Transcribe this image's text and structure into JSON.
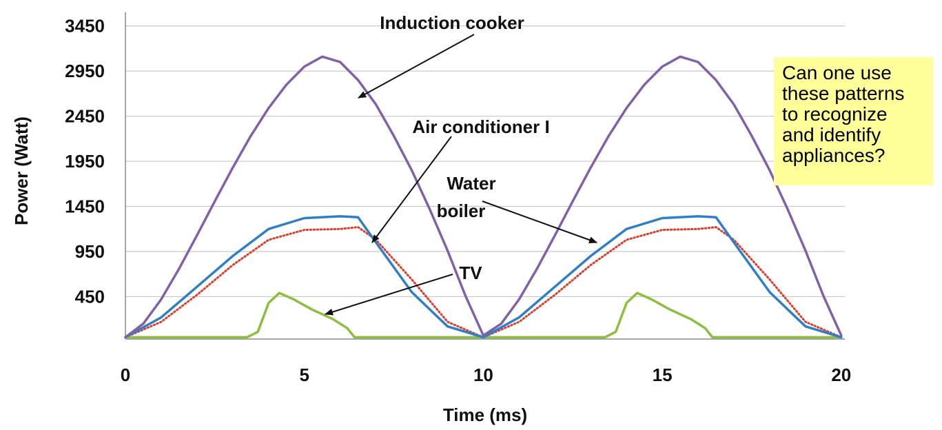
{
  "chart_data": {
    "type": "line",
    "title": "",
    "xlabel": "Time (ms)",
    "ylabel": "Power (Watt)",
    "xlim": [
      0,
      20.1
    ],
    "ylim": [
      -20,
      3600
    ],
    "xticks": [
      "0",
      "5",
      "10",
      "15",
      "20"
    ],
    "yticks": [
      "450",
      "950",
      "1450",
      "1950",
      "2450",
      "2950",
      "3450"
    ],
    "grid": "horizontal",
    "series": [
      {
        "name": "Induction cooker",
        "color": "#8060a8",
        "x": [
          0,
          0.5,
          1,
          1.5,
          2,
          2.5,
          3,
          3.5,
          4,
          4.5,
          5,
          5.5,
          6,
          6.5,
          7,
          7.5,
          8,
          8.5,
          9,
          9.5,
          10,
          10.5,
          11,
          11.5,
          12,
          12.5,
          13,
          13.5,
          14,
          14.5,
          15,
          15.5,
          16,
          16.5,
          17,
          17.5,
          18,
          18.5,
          19,
          19.5,
          20
        ],
        "y": [
          0,
          150,
          420,
          760,
          1130,
          1510,
          1880,
          2230,
          2540,
          2800,
          3000,
          3110,
          3050,
          2850,
          2580,
          2230,
          1850,
          1420,
          960,
          460,
          20,
          150,
          420,
          760,
          1130,
          1510,
          1880,
          2230,
          2540,
          2800,
          3000,
          3110,
          3050,
          2850,
          2580,
          2230,
          1850,
          1420,
          960,
          460,
          20
        ]
      },
      {
        "name": "Water boiler",
        "color": "#2e7fc8",
        "x": [
          0,
          1,
          2,
          3,
          4,
          5,
          6,
          6.5,
          7,
          8,
          9,
          10,
          11,
          12,
          13,
          14,
          15,
          16,
          16.5,
          17,
          18,
          19,
          20
        ],
        "y": [
          0,
          220,
          560,
          900,
          1200,
          1320,
          1340,
          1330,
          1050,
          500,
          120,
          0,
          220,
          560,
          900,
          1200,
          1320,
          1340,
          1330,
          1050,
          500,
          120,
          0
        ]
      },
      {
        "name": "Air conditioner I",
        "color": "#e03a2a",
        "x": [
          0,
          1,
          2,
          3,
          4,
          5,
          6,
          6.5,
          7,
          8,
          9,
          10,
          11,
          12,
          13,
          14,
          15,
          16,
          16.5,
          17,
          18,
          19,
          20
        ],
        "y": [
          0,
          170,
          470,
          800,
          1080,
          1190,
          1200,
          1220,
          1080,
          640,
          170,
          0,
          170,
          470,
          800,
          1080,
          1190,
          1200,
          1220,
          1080,
          640,
          170,
          0
        ]
      },
      {
        "name": "TV",
        "color": "#8cbf3f",
        "x": [
          0,
          3.4,
          3.7,
          4.0,
          4.3,
          4.7,
          5.2,
          5.8,
          6.2,
          6.4,
          7,
          10,
          13.4,
          13.7,
          14.0,
          14.3,
          14.7,
          15.2,
          15.8,
          16.2,
          16.4,
          17,
          20
        ],
        "y": [
          0,
          0,
          60,
          380,
          490,
          420,
          310,
          200,
          100,
          0,
          0,
          0,
          0,
          60,
          380,
          490,
          420,
          310,
          200,
          100,
          0,
          0,
          0
        ]
      }
    ],
    "annotations": [
      {
        "text": "Induction cooker",
        "target_x": 6.4,
        "target_y": 2700
      },
      {
        "text": "Air conditioner I",
        "target_x": 6.8,
        "target_y": 1100
      },
      {
        "text": "Water",
        "target_x": 13.3,
        "target_y": 1050
      },
      {
        "text": "boiler",
        "target_x": 13.3,
        "target_y": 1050
      },
      {
        "text": "TV",
        "target_x": 5.5,
        "target_y": 270
      }
    ]
  },
  "note": {
    "lines": [
      "Can one use",
      "these patterns",
      "to recognize",
      "and identify",
      "appliances?"
    ]
  }
}
